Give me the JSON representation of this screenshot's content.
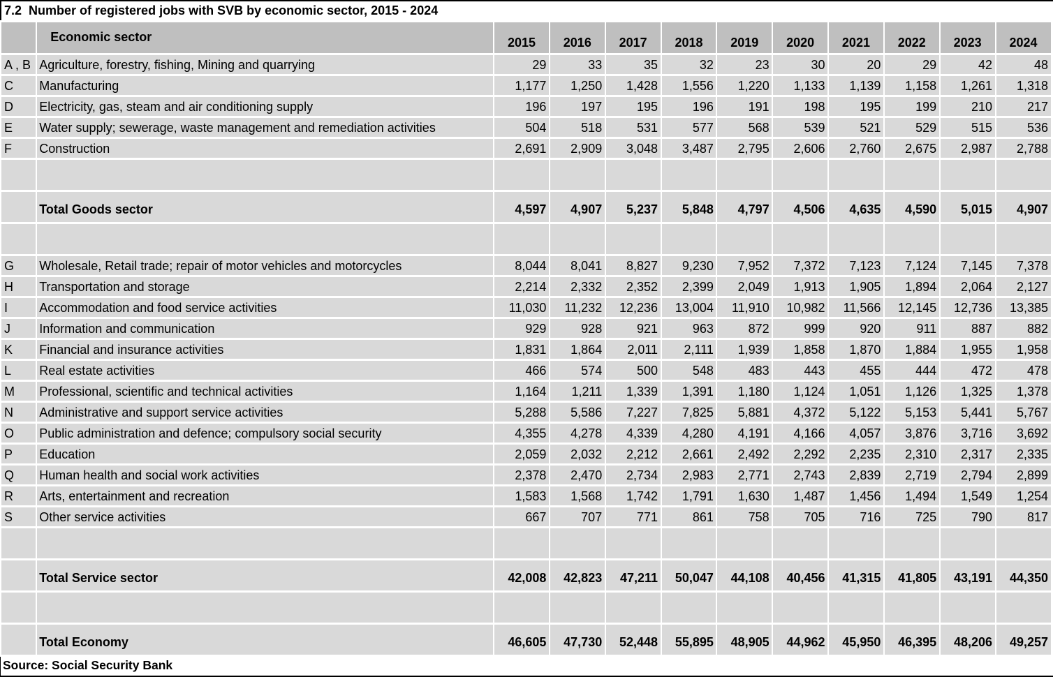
{
  "title": "7.2  Number of registered jobs with SVB by economic sector, 2015 - 2024",
  "colors": {
    "header_bg": "#bfbfbf",
    "row_bg": "#d9d9d9",
    "border": "#000000",
    "page_bg": "#ffffff",
    "text": "#000000"
  },
  "chart_data": {
    "type": "table",
    "title": "7.2  Number of registered jobs with SVB by economic sector, 2015 - 2024",
    "corner_header": "",
    "row_header_label": "Economic sector",
    "columns": [
      "2015",
      "2016",
      "2017",
      "2018",
      "2019",
      "2020",
      "2021",
      "2022",
      "2023",
      "2024"
    ],
    "rows": [
      {
        "kind": "data",
        "code": "A , B",
        "label": "Agriculture, forestry, fishing, Mining and quarrying",
        "values": [
          "29",
          "33",
          "35",
          "32",
          "23",
          "30",
          "20",
          "29",
          "42",
          "48"
        ]
      },
      {
        "kind": "data",
        "code": "C",
        "label": "Manufacturing",
        "values": [
          "1,177",
          "1,250",
          "1,428",
          "1,556",
          "1,220",
          "1,133",
          "1,139",
          "1,158",
          "1,261",
          "1,318"
        ]
      },
      {
        "kind": "data",
        "code": "D",
        "label": "Electricity, gas, steam and air conditioning supply",
        "values": [
          "196",
          "197",
          "195",
          "196",
          "191",
          "198",
          "195",
          "199",
          "210",
          "217"
        ]
      },
      {
        "kind": "data",
        "code": "E",
        "label": "Water supply; sewerage, waste management and remediation activities",
        "values": [
          "504",
          "518",
          "531",
          "577",
          "568",
          "539",
          "521",
          "529",
          "515",
          "536"
        ]
      },
      {
        "kind": "data",
        "code": "F",
        "label": "Construction",
        "values": [
          "2,691",
          "2,909",
          "3,048",
          "3,487",
          "2,795",
          "2,606",
          "2,760",
          "2,675",
          "2,987",
          "2,788"
        ]
      },
      {
        "kind": "spacer",
        "code": "",
        "label": "",
        "values": [
          "",
          "",
          "",
          "",
          "",
          "",
          "",
          "",
          "",
          ""
        ]
      },
      {
        "kind": "total",
        "code": "",
        "label": "Total Goods sector",
        "values": [
          "4,597",
          "4,907",
          "5,237",
          "5,848",
          "4,797",
          "4,506",
          "4,635",
          "4,590",
          "5,015",
          "4,907"
        ]
      },
      {
        "kind": "spacer",
        "code": "",
        "label": "",
        "values": [
          "",
          "",
          "",
          "",
          "",
          "",
          "",
          "",
          "",
          ""
        ]
      },
      {
        "kind": "data",
        "code": "G",
        "label": "Wholesale, Retail trade; repair of motor vehicles and motorcycles",
        "values": [
          "8,044",
          "8,041",
          "8,827",
          "9,230",
          "7,952",
          "7,372",
          "7,123",
          "7,124",
          "7,145",
          "7,378"
        ]
      },
      {
        "kind": "data",
        "code": "H",
        "label": "Transportation and storage",
        "values": [
          "2,214",
          "2,332",
          "2,352",
          "2,399",
          "2,049",
          "1,913",
          "1,905",
          "1,894",
          "2,064",
          "2,127"
        ]
      },
      {
        "kind": "data",
        "code": "I",
        "label": "Accommodation and food service activities",
        "values": [
          "11,030",
          "11,232",
          "12,236",
          "13,004",
          "11,910",
          "10,982",
          "11,566",
          "12,145",
          "12,736",
          "13,385"
        ]
      },
      {
        "kind": "data",
        "code": "J",
        "label": "Information and communication",
        "values": [
          "929",
          "928",
          "921",
          "963",
          "872",
          "999",
          "920",
          "911",
          "887",
          "882"
        ]
      },
      {
        "kind": "data",
        "code": "K",
        "label": "Financial and insurance activities",
        "values": [
          "1,831",
          "1,864",
          "2,011",
          "2,111",
          "1,939",
          "1,858",
          "1,870",
          "1,884",
          "1,955",
          "1,958"
        ]
      },
      {
        "kind": "data",
        "code": "L",
        "label": "Real estate activities",
        "values": [
          "466",
          "574",
          "500",
          "548",
          "483",
          "443",
          "455",
          "444",
          "472",
          "478"
        ]
      },
      {
        "kind": "data",
        "code": "M",
        "label": "Professional, scientific and technical activities",
        "values": [
          "1,164",
          "1,211",
          "1,339",
          "1,391",
          "1,180",
          "1,124",
          "1,051",
          "1,126",
          "1,325",
          "1,378"
        ]
      },
      {
        "kind": "data",
        "code": "N",
        "label": "Administrative and support service activities",
        "values": [
          "5,288",
          "5,586",
          "7,227",
          "7,825",
          "5,881",
          "4,372",
          "5,122",
          "5,153",
          "5,441",
          "5,767"
        ]
      },
      {
        "kind": "data",
        "code": "O",
        "label": "Public administration and defence; compulsory social security",
        "values": [
          "4,355",
          "4,278",
          "4,339",
          "4,280",
          "4,191",
          "4,166",
          "4,057",
          "3,876",
          "3,716",
          "3,692"
        ]
      },
      {
        "kind": "data",
        "code": "P",
        "label": "Education",
        "values": [
          "2,059",
          "2,032",
          "2,212",
          "2,661",
          "2,492",
          "2,292",
          "2,235",
          "2,310",
          "2,317",
          "2,335"
        ]
      },
      {
        "kind": "data",
        "code": "Q",
        "label": "Human health and social work activities",
        "values": [
          "2,378",
          "2,470",
          "2,734",
          "2,983",
          "2,771",
          "2,743",
          "2,839",
          "2,719",
          "2,794",
          "2,899"
        ]
      },
      {
        "kind": "data",
        "code": "R",
        "label": "Arts, entertainment and recreation",
        "values": [
          "1,583",
          "1,568",
          "1,742",
          "1,791",
          "1,630",
          "1,487",
          "1,456",
          "1,494",
          "1,549",
          "1,254"
        ]
      },
      {
        "kind": "data",
        "code": "S",
        "label": "Other service activities",
        "values": [
          "667",
          "707",
          "771",
          "861",
          "758",
          "705",
          "716",
          "725",
          "790",
          "817"
        ]
      },
      {
        "kind": "spacer",
        "code": "",
        "label": "",
        "values": [
          "",
          "",
          "",
          "",
          "",
          "",
          "",
          "",
          "",
          ""
        ]
      },
      {
        "kind": "total",
        "code": "",
        "label": "Total Service sector",
        "values": [
          "42,008",
          "42,823",
          "47,211",
          "50,047",
          "44,108",
          "40,456",
          "41,315",
          "41,805",
          "43,191",
          "44,350"
        ]
      },
      {
        "kind": "spacer",
        "code": "",
        "label": "",
        "values": [
          "",
          "",
          "",
          "",
          "",
          "",
          "",
          "",
          "",
          ""
        ]
      },
      {
        "kind": "total",
        "code": "",
        "label": "Total Economy",
        "values": [
          "46,605",
          "47,730",
          "52,448",
          "55,895",
          "48,905",
          "44,962",
          "45,950",
          "46,395",
          "48,206",
          "49,257"
        ]
      }
    ],
    "source": "Source: Social Security Bank"
  }
}
